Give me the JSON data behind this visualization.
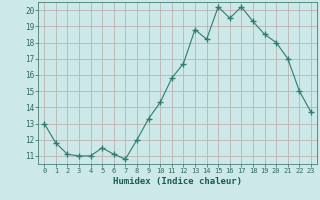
{
  "x": [
    0,
    1,
    2,
    3,
    4,
    5,
    6,
    7,
    8,
    9,
    10,
    11,
    12,
    13,
    14,
    15,
    16,
    17,
    18,
    19,
    20,
    21,
    22,
    23
  ],
  "y": [
    13,
    11.8,
    11.1,
    11.0,
    11.0,
    11.5,
    11.1,
    10.8,
    12.0,
    13.3,
    14.3,
    15.8,
    16.7,
    18.8,
    18.2,
    20.2,
    19.5,
    20.2,
    19.3,
    18.5,
    18.0,
    17.0,
    15.0,
    13.7
  ],
  "xlim": [
    -0.5,
    23.5
  ],
  "ylim": [
    10.5,
    20.5
  ],
  "yticks": [
    11,
    12,
    13,
    14,
    15,
    16,
    17,
    18,
    19,
    20
  ],
  "xticks": [
    0,
    1,
    2,
    3,
    4,
    5,
    6,
    7,
    8,
    9,
    10,
    11,
    12,
    13,
    14,
    15,
    16,
    17,
    18,
    19,
    20,
    21,
    22,
    23
  ],
  "xlabel": "Humidex (Indice chaleur)",
  "line_color": "#2e7d6e",
  "marker": "+",
  "marker_size": 4,
  "bg_color": "#cce8e8",
  "grid_color": "#b8a8a8",
  "tick_color": "#2e6b5e",
  "label_color": "#1a5c50",
  "font_family": "monospace"
}
